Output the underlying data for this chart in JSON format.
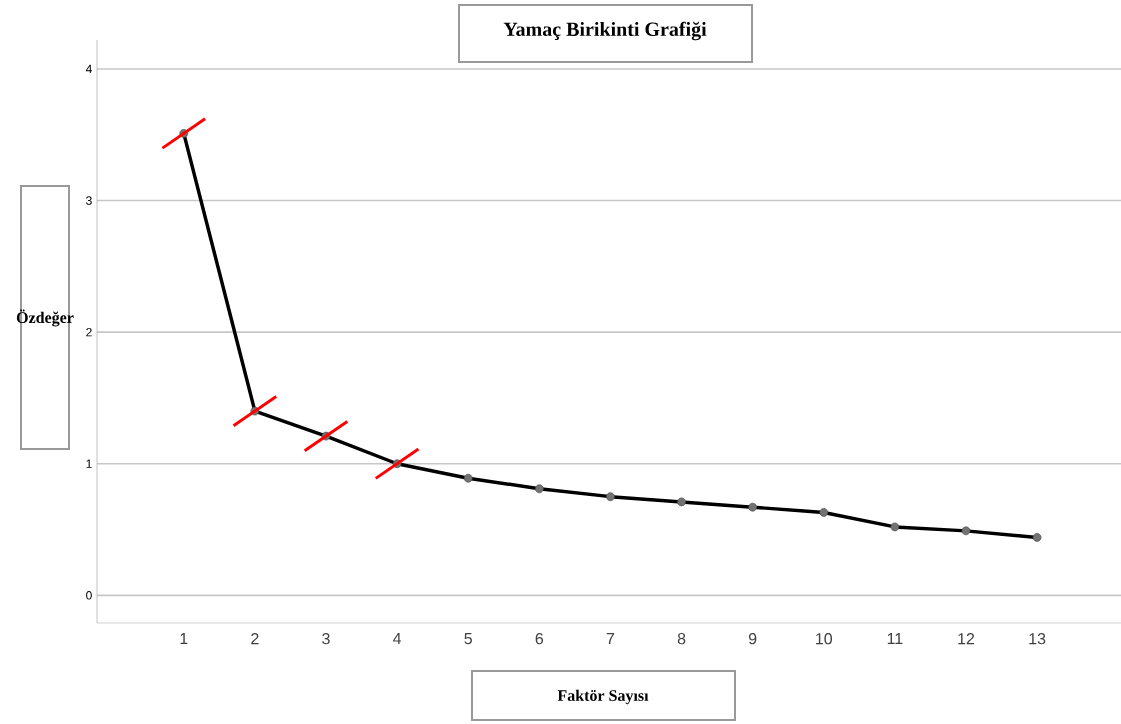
{
  "chart_data": {
    "type": "line",
    "title": "Yamaç Birikinti Grafiği",
    "xlabel": "Faktör Sayısı",
    "ylabel": "Özdeğer",
    "categories": [
      "1",
      "2",
      "3",
      "4",
      "5",
      "6",
      "7",
      "8",
      "9",
      "10",
      "11",
      "12",
      "13"
    ],
    "series": [
      {
        "color": "#000000",
        "values": [
          3.51,
          1.4,
          1.21,
          1.0,
          0.89,
          0.81,
          0.75,
          0.71,
          0.67,
          0.63,
          0.52,
          0.49,
          0.44
        ]
      }
    ],
    "ylim": [
      -0.21,
      4.22
    ],
    "yticks": [
      0,
      1,
      2,
      3,
      4
    ],
    "grid": "y",
    "marker": "circle",
    "line_style": "solid"
  }
}
